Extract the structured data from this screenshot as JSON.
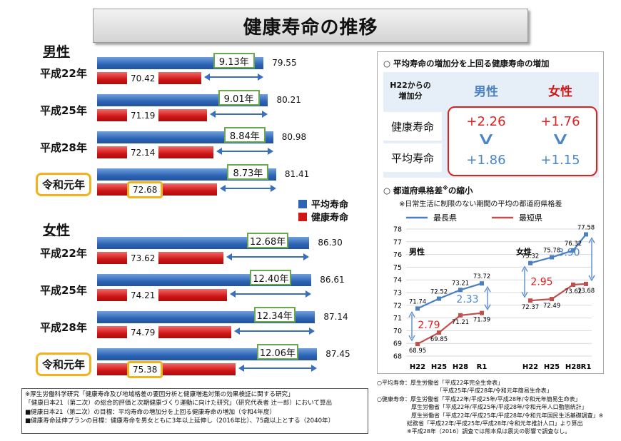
{
  "title": "健康寿命の推移",
  "left": {
    "male_heading": "男性",
    "female_heading": "女性",
    "legend": [
      {
        "label": "平均寿命",
        "color": "#2d64b5"
      },
      {
        "label": "健康寿命",
        "color": "#d01616"
      }
    ]
  },
  "chart_data": [
    {
      "type": "bar",
      "title": "男性",
      "categories": [
        "平成22年",
        "平成25年",
        "平成28年",
        "令和元年"
      ],
      "series": [
        {
          "name": "平均寿命",
          "values": [
            79.55,
            80.21,
            80.98,
            81.41
          ],
          "labels": [
            "79.55",
            "80.21",
            "80.98",
            "81.41"
          ]
        },
        {
          "name": "健康寿命",
          "values": [
            70.42,
            71.19,
            72.14,
            72.68
          ],
          "labels": [
            "70.42",
            "71.19",
            "72.14",
            "72.68"
          ]
        }
      ],
      "differences": [
        "9.13年",
        "9.01年",
        "8.84年",
        "8.73年"
      ],
      "highlighted": [
        "令和元年"
      ]
    },
    {
      "type": "bar",
      "title": "女性",
      "categories": [
        "平成22年",
        "平成25年",
        "平成28年",
        "令和元年"
      ],
      "series": [
        {
          "name": "平均寿命",
          "values": [
            86.3,
            86.61,
            87.14,
            87.45
          ],
          "labels": [
            "86.30",
            "86.61",
            "87.14",
            "87.45"
          ]
        },
        {
          "name": "健康寿命",
          "values": [
            73.62,
            74.21,
            74.79,
            75.38
          ],
          "labels": [
            "73.62",
            "74.21",
            "74.79",
            "75.38"
          ]
        }
      ],
      "differences": [
        "12.68年",
        "12.40年",
        "12.34年",
        "12.06年"
      ],
      "highlighted": [
        "令和元年"
      ]
    },
    {
      "type": "line",
      "title": "男性",
      "x": [
        "H22",
        "H25",
        "H28",
        "R1"
      ],
      "series": [
        {
          "name": "最長県",
          "values": [
            71.74,
            72.52,
            73.21,
            73.72
          ],
          "labels": [
            "71.74",
            "72.52",
            "73.21",
            "73.72"
          ]
        },
        {
          "name": "最短県",
          "values": [
            68.95,
            69.85,
            71.21,
            71.39
          ],
          "labels": [
            "68.95",
            "69.85",
            "71.21",
            "71.39"
          ]
        }
      ],
      "gaps": [
        {
          "label": "2.79",
          "color": "#e02020"
        },
        {
          "label": "2.33",
          "color": "#4a86c8"
        }
      ],
      "ylim": [
        68,
        78
      ],
      "yticks": [
        "68",
        "69",
        "70",
        "71",
        "72",
        "73",
        "74",
        "75",
        "76",
        "77",
        "78"
      ],
      "grid": true
    },
    {
      "type": "line",
      "title": "女性",
      "x": [
        "H22",
        "H25",
        "H28",
        "R1"
      ],
      "series": [
        {
          "name": "最長県",
          "values": [
            75.32,
            75.78,
            76.32,
            77.58
          ],
          "labels": [
            "75.32",
            "75.78",
            "76.32",
            "77.58"
          ]
        },
        {
          "name": "最短県",
          "values": [
            72.37,
            72.49,
            73.62,
            73.68
          ],
          "labels": [
            "72.37",
            "72.49",
            "73.62",
            "73.68"
          ]
        }
      ],
      "gaps": [
        {
          "label": "2.95",
          "color": "#e02020"
        },
        {
          "label": "3.90",
          "color": "#4a86c8"
        }
      ],
      "ylim": [
        68,
        78
      ],
      "grid": true
    }
  ],
  "right": {
    "gain_heading": "○ 平均寿命の増加分を上回る健康寿命の増加",
    "gain_table": {
      "corner_line1": "H22からの",
      "corner_line2": "増加分",
      "col_male": "男性",
      "col_female": "女性",
      "row_hle": "健康寿命",
      "row_avg": "平均寿命",
      "male_hle": "+2.26",
      "male_avg": "+1.86",
      "female_hle": "+1.76",
      "female_avg": "+1.15"
    },
    "pref_heading": "○ 都道府県格差",
    "pref_heading_sup": "※",
    "pref_heading_tail": "の縮小",
    "pref_note": "※日常生活に制限のない期間の平均の都道府県格差",
    "legend_long": "最長県",
    "legend_short": "最短県",
    "color_long": "#4a7fc1",
    "color_short": "#c0504d"
  },
  "notes": [
    "※厚生労働科学研究「健康寿命及び地域格差の要因分析と健康増進対策の効果検証に関する研究」",
    "「健康日本21（第二次）の総合的評価と次期健康づくり運動に向けた研究」（研究代表者 辻一郎）において算出",
    "■健康日本21（第二次）の目標：平均寿命の増加分を上回る健康寿命の増加（令和4年度）",
    "■健康寿命延伸プランの目標：健康寿命を男女ともに3年以上延伸し（2016年比）、75歳以上とする（2040年）"
  ],
  "sources": [
    "○平均寿命：厚生労働省「平成22年完全生命表」",
    "「平成25年/平成28年/令和元年簡易生命表」",
    "○健康寿命：厚生労働省「平成22年/平成25年/平成28年/令和元年簡易生命表」",
    "厚生労働省「平成22年/平成25年/平成28年/令和元年人口動態統計」",
    "厚生労働省「平成22年/平成25年/平成28年/令和元年国民生活基礎調査」※",
    "総務省「平成22年/平成25年/平成28年/令和元年推計人口」より算出",
    "※平成28年（2016）調査では熊本県は震災の影響で調査なし。"
  ]
}
